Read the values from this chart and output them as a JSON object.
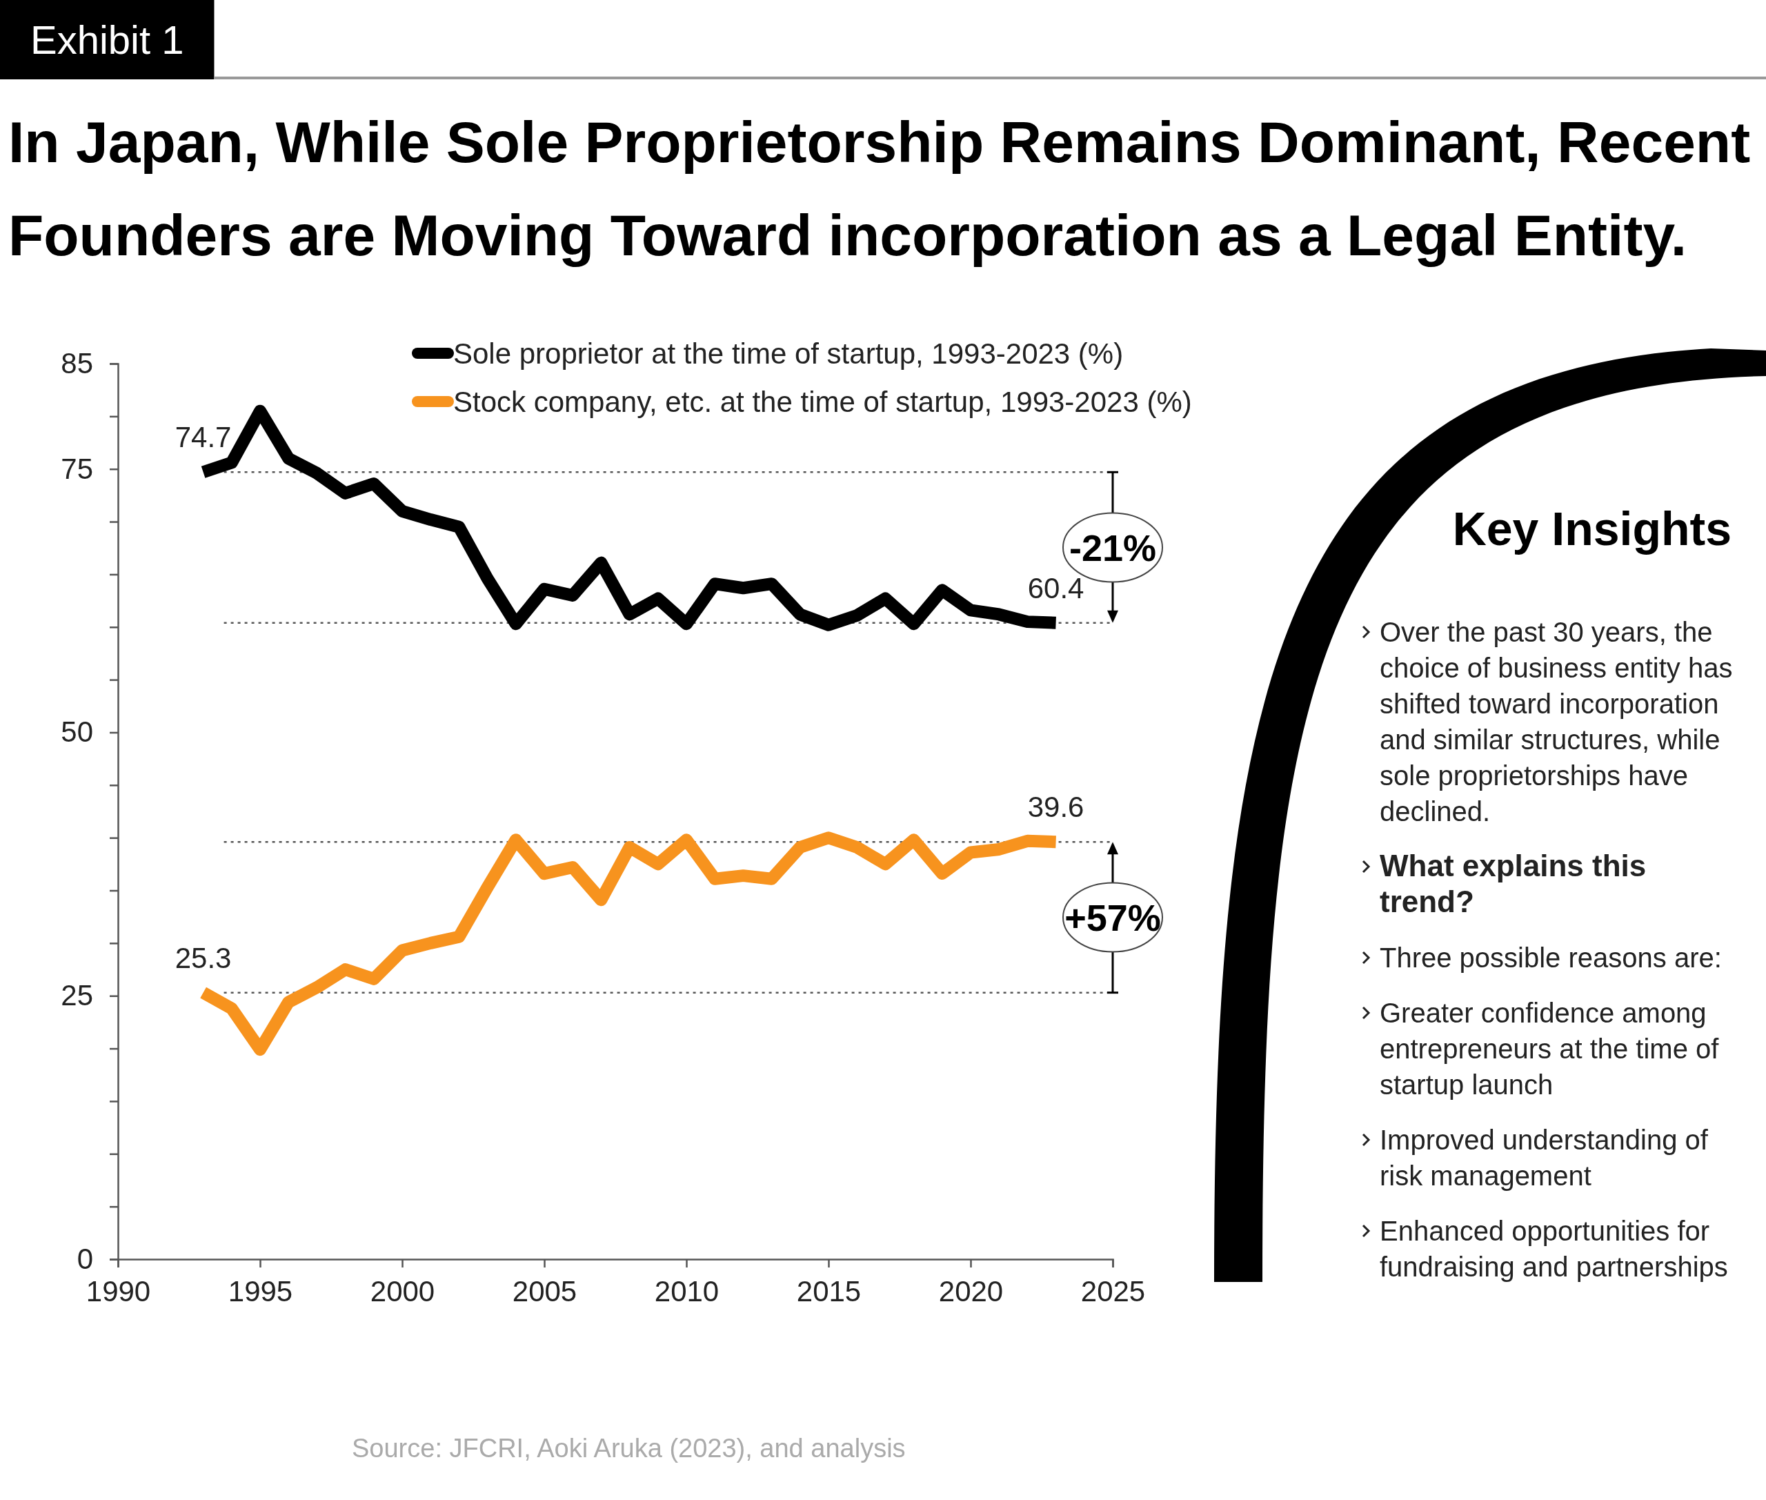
{
  "chart_data": {
    "type": "line",
    "title": "In Japan, While Sole Proprietorship Remains Dominant, Recent Founders are Moving Toward incorporation as a Legal Entity.",
    "x": [
      1993,
      1994,
      1995,
      1996,
      1997,
      1998,
      1999,
      2000,
      2001,
      2002,
      2003,
      2004,
      2005,
      2006,
      2007,
      2008,
      2009,
      2010,
      2011,
      2012,
      2013,
      2014,
      2015,
      2016,
      2017,
      2018,
      2019,
      2020,
      2021,
      2022,
      2023
    ],
    "series": [
      {
        "name": "Sole proprietor at the time of startup, 1993-2023 (%)",
        "color": "#000000",
        "values": [
          74.7,
          75.6,
          80.5,
          76.0,
          74.6,
          72.7,
          73.6,
          71.0,
          70.2,
          69.5,
          64.6,
          60.3,
          63.6,
          63.0,
          66.1,
          61.2,
          62.7,
          60.3,
          64.1,
          63.7,
          64.1,
          61.2,
          60.2,
          61.1,
          62.7,
          60.3,
          63.5,
          61.6,
          61.2,
          60.5,
          60.4
        ],
        "value_labels": [
          "74.7",
          null,
          null,
          null,
          null,
          null,
          null,
          null,
          null,
          null,
          null,
          null,
          null,
          null,
          null,
          null,
          null,
          null,
          null,
          null,
          null,
          null,
          null,
          null,
          null,
          null,
          null,
          null,
          null,
          null,
          "60.4"
        ]
      },
      {
        "name": "Stock company, etc. at the time of startup, 1993-2023 (%)",
        "color": "#f7931e",
        "values": [
          25.3,
          23.8,
          19.9,
          24.4,
          25.8,
          27.5,
          26.6,
          29.3,
          30.0,
          30.6,
          35.3,
          39.8,
          36.6,
          37.2,
          34.1,
          39.1,
          37.5,
          39.8,
          36.1,
          36.4,
          36.1,
          39.1,
          40.0,
          39.1,
          37.5,
          39.8,
          36.6,
          38.6,
          38.9,
          39.7,
          39.6
        ],
        "value_labels": [
          "25.3",
          null,
          null,
          null,
          null,
          null,
          null,
          null,
          null,
          null,
          null,
          null,
          null,
          null,
          null,
          null,
          null,
          null,
          null,
          null,
          null,
          null,
          null,
          null,
          null,
          null,
          null,
          null,
          null,
          null,
          "39.6"
        ]
      }
    ],
    "xlim": [
      1990,
      2025
    ],
    "xticks": [
      1990,
      1995,
      2000,
      2005,
      2010,
      2015,
      2020,
      2025
    ],
    "ylim": [
      0,
      85
    ],
    "yticks": [
      0,
      {
        "value": 5,
        "label": null
      },
      {
        "value": 10,
        "label": null
      },
      {
        "value": 15,
        "label": null
      },
      {
        "value": 20,
        "label": null
      },
      25,
      {
        "value": 30,
        "label": null
      },
      {
        "value": 35,
        "label": null
      },
      {
        "value": 40,
        "label": null
      },
      {
        "value": 45,
        "label": null
      },
      50,
      {
        "value": 55,
        "label": null
      },
      {
        "value": 60,
        "label": null
      },
      {
        "value": 65,
        "label": null
      },
      {
        "value": 70,
        "label": null
      },
      75,
      {
        "value": 80,
        "label": null
      },
      85
    ],
    "grid": false,
    "legend": "top",
    "marker": "none",
    "line_style": "solid",
    "ref_lines": [
      {
        "axis": "y",
        "value": 74.7,
        "line_style": "dotted",
        "color": "#555555"
      },
      {
        "axis": "y",
        "value": 60.4,
        "line_style": "dotted",
        "color": "#555555"
      },
      {
        "axis": "y",
        "value": 39.6,
        "line_style": "dotted",
        "color": "#555555"
      },
      {
        "axis": "y",
        "value": 25.3,
        "line_style": "dotted",
        "color": "#555555"
      }
    ],
    "annotations": [
      "-21%",
      "+57%",
      "Exhibit 1",
      "Key Insights",
      "Over the past 30 years, the choice of business entity has shifted toward incorporation and similar structures, while sole proprietorships have declined.",
      "What explains this trend?",
      "Three possible reasons are:",
      "Greater confidence among entrepreneurs at the time of startup launch",
      "Improved understanding of risk management",
      "Enhanced opportunities for fundraising and partnerships",
      "Source: JFCRI, Aoki Aruka (2023), and analysis"
    ]
  }
}
